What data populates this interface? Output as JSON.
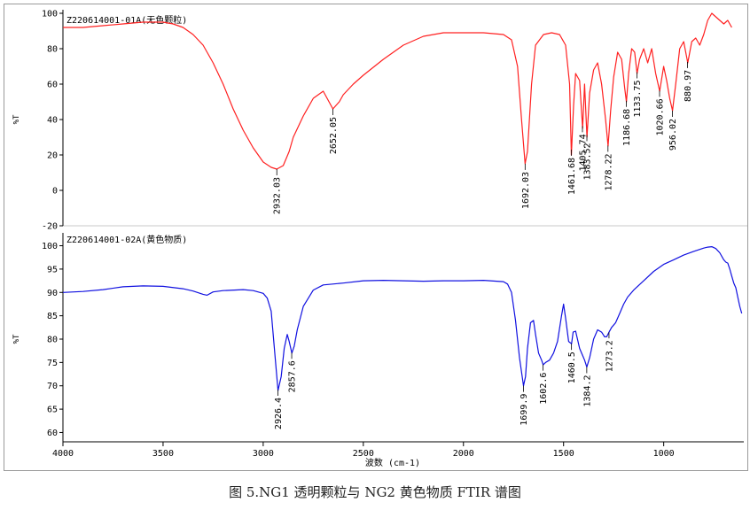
{
  "caption": "图 5.NG1 透明颗粒与 NG2 黄色物质 FTIR 谱图",
  "chart_data": [
    {
      "type": "line",
      "title": "Z220614001-01A(无色颗粒)",
      "xlabel": "波数 (cm-1)",
      "ylabel": "%T",
      "xlim": [
        4000,
        600
      ],
      "ylim": [
        -20,
        100
      ],
      "yticks": [
        -20,
        0,
        20,
        40,
        60,
        80,
        100
      ],
      "color": "#ff2020",
      "x": [
        4000,
        3900,
        3800,
        3700,
        3600,
        3500,
        3450,
        3400,
        3350,
        3300,
        3250,
        3200,
        3150,
        3100,
        3050,
        3000,
        2960,
        2932,
        2900,
        2870,
        2850,
        2800,
        2750,
        2700,
        2652,
        2620,
        2600,
        2550,
        2500,
        2400,
        2300,
        2200,
        2100,
        2000,
        1900,
        1800,
        1760,
        1730,
        1710,
        1692,
        1680,
        1660,
        1640,
        1600,
        1560,
        1520,
        1490,
        1470,
        1461,
        1450,
        1440,
        1420,
        1405,
        1395,
        1383,
        1370,
        1350,
        1330,
        1310,
        1290,
        1278,
        1265,
        1250,
        1230,
        1210,
        1195,
        1186,
        1175,
        1160,
        1145,
        1133,
        1120,
        1100,
        1080,
        1060,
        1040,
        1020,
        1000,
        985,
        970,
        956,
        940,
        920,
        900,
        880,
        860,
        840,
        820,
        800,
        780,
        760,
        740,
        720,
        700,
        680,
        660
      ],
      "y": [
        92,
        92,
        93,
        94,
        95,
        95,
        94,
        92,
        88,
        82,
        72,
        60,
        46,
        34,
        24,
        16,
        13,
        12,
        14,
        22,
        30,
        42,
        52,
        56,
        46,
        50,
        54,
        60,
        65,
        74,
        82,
        87,
        89,
        89,
        89,
        88,
        85,
        70,
        40,
        15,
        22,
        60,
        82,
        88,
        89,
        88,
        82,
        60,
        20,
        48,
        66,
        62,
        35,
        60,
        30,
        55,
        68,
        72,
        60,
        40,
        25,
        45,
        64,
        78,
        74,
        58,
        50,
        66,
        80,
        78,
        66,
        74,
        80,
        72,
        80,
        66,
        56,
        70,
        62,
        52,
        45,
        60,
        80,
        84,
        72,
        84,
        86,
        82,
        88,
        96,
        100,
        98,
        96,
        94,
        96,
        92
      ],
      "peaks": [
        "2932.03",
        "2652.05",
        "1692.03",
        "1461.68",
        "1405.74",
        "1383.52",
        "1278.22",
        "1186.68",
        "1133.75",
        "1020.66",
        "956.02",
        "880.97"
      ],
      "peak_x": [
        2932.03,
        2652.05,
        1692.03,
        1461.68,
        1405.74,
        1383.52,
        1278.22,
        1186.68,
        1133.75,
        1020.66,
        956.02,
        880.97
      ]
    },
    {
      "type": "line",
      "title": "Z220614001-02A(黄色物质)",
      "xlabel": "波数 (cm-1)",
      "ylabel": "%T",
      "xlim": [
        4000,
        600
      ],
      "ylim": [
        58,
        102
      ],
      "yticks": [
        60,
        65,
        70,
        75,
        80,
        85,
        90,
        95,
        100
      ],
      "color": "#1010e0",
      "x": [
        4000,
        3900,
        3800,
        3700,
        3600,
        3500,
        3400,
        3350,
        3300,
        3280,
        3250,
        3200,
        3100,
        3050,
        3000,
        2980,
        2960,
        2940,
        2926,
        2910,
        2895,
        2880,
        2870,
        2857,
        2845,
        2830,
        2800,
        2750,
        2700,
        2600,
        2500,
        2400,
        2300,
        2200,
        2100,
        2000,
        1900,
        1800,
        1780,
        1760,
        1740,
        1720,
        1700,
        1690,
        1680,
        1665,
        1650,
        1640,
        1625,
        1610,
        1602,
        1590,
        1570,
        1550,
        1530,
        1510,
        1500,
        1490,
        1475,
        1460,
        1452,
        1440,
        1420,
        1405,
        1395,
        1384,
        1370,
        1350,
        1330,
        1310,
        1295,
        1285,
        1273,
        1260,
        1240,
        1220,
        1200,
        1180,
        1150,
        1100,
        1050,
        1000,
        950,
        900,
        850,
        800,
        780,
        760,
        740,
        720,
        700,
        690,
        680,
        670,
        660,
        650,
        640,
        630,
        620,
        610
      ],
      "y": [
        90,
        90.2,
        90.6,
        91.2,
        91.4,
        91.3,
        90.8,
        90.3,
        89.6,
        89.4,
        90.1,
        90.4,
        90.6,
        90.4,
        89.8,
        88.8,
        86,
        76,
        69,
        72,
        78,
        81,
        79.5,
        77,
        78.5,
        82,
        87,
        90.5,
        91.6,
        92,
        92.5,
        92.6,
        92.5,
        92.4,
        92.5,
        92.5,
        92.6,
        92.3,
        91.8,
        90,
        84,
        76,
        70,
        72,
        78,
        83.5,
        84,
        81,
        77,
        75.5,
        74.5,
        75,
        75.5,
        77,
        79.5,
        85,
        87.5,
        84.5,
        79.5,
        79,
        81.5,
        81.7,
        78,
        76.5,
        75.5,
        74,
        76,
        80,
        82,
        81.5,
        80.5,
        80.5,
        81.5,
        82.5,
        83.5,
        85.5,
        87.5,
        89,
        90.5,
        92.5,
        94.5,
        96,
        97,
        98,
        98.8,
        99.5,
        99.7,
        99.8,
        99.4,
        98.5,
        97,
        96.5,
        96.3,
        95,
        93.5,
        92,
        91,
        89,
        87,
        85.5
      ],
      "peaks": [
        "2926.4",
        "2857.6",
        "1699.9",
        "1602.6",
        "1460.5",
        "1384.2",
        "1273.2"
      ],
      "peak_x": [
        2926.4,
        2857.6,
        1699.9,
        1602.6,
        1460.5,
        1384.2,
        1273.2
      ]
    }
  ],
  "x_axis": {
    "ticks": [
      4000,
      3500,
      3000,
      2500,
      2000,
      1500,
      1000
    ],
    "label": "波数 (cm-1)"
  }
}
